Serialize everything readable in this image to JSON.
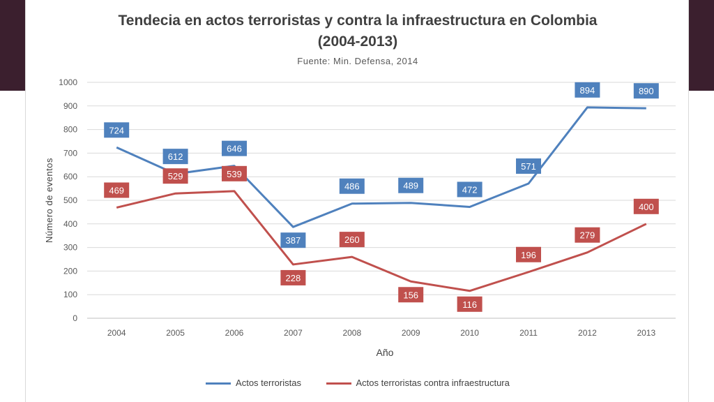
{
  "chart_data": {
    "type": "line",
    "title_line1": "Tendecia en actos terroristas y contra la infraestructura en Colombia",
    "title_line2": "(2004-2013)",
    "subtitle": "Fuente: Min. Defensa, 2014",
    "xlabel": "Año",
    "ylabel": "Número de eventos",
    "ylim": [
      0,
      1000
    ],
    "yticks": [
      "0",
      "100",
      "200",
      "300",
      "400",
      "500",
      "600",
      "700",
      "800",
      "900",
      "1000"
    ],
    "x": [
      "2004",
      "2005",
      "2006",
      "2007",
      "2008",
      "2009",
      "2010",
      "2011",
      "2012",
      "2013"
    ],
    "grid": true,
    "legend_position": "bottom",
    "series": [
      {
        "name": "Actos terroristas",
        "color": "#4f81bd",
        "values": [
          724,
          612,
          646,
          387,
          486,
          489,
          472,
          571,
          894,
          890
        ]
      },
      {
        "name": "Actos terroristas contra infraestructura",
        "color": "#c0504d",
        "values": [
          469,
          529,
          539,
          228,
          260,
          156,
          116,
          196,
          279,
          400
        ]
      }
    ]
  }
}
